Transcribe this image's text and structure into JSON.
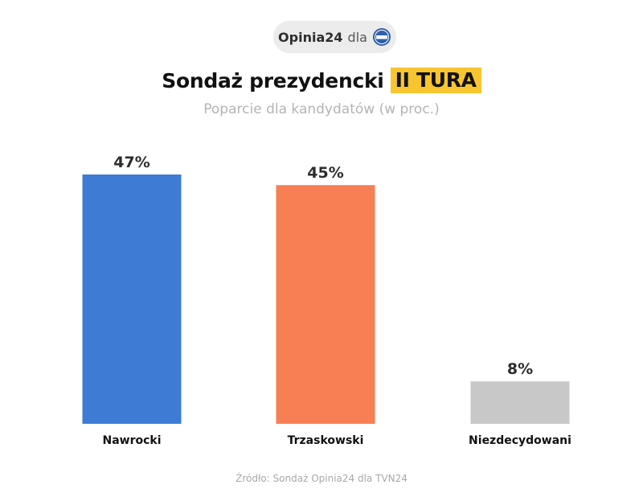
{
  "badge": {
    "brand": "Opinia24",
    "dla": "dla",
    "logo_icon": "tvn24-logo-icon"
  },
  "header": {
    "title": "Sondaż prezydencki",
    "title_highlight": "II TURA",
    "subtitle": "Poparcie dla kandydatów (w proc.)"
  },
  "chart_data": {
    "type": "bar",
    "title": "Sondaż prezydencki II TURA",
    "subtitle": "Poparcie dla kandydatów (w proc.)",
    "categories": [
      "Nawrocki",
      "Trzaskowski",
      "Niezdecydowani"
    ],
    "values": [
      47,
      45,
      8
    ],
    "labels": [
      "47%",
      "45%",
      "8%"
    ],
    "colors": [
      "#3d7bd4",
      "#f77f53",
      "#c8c8c8"
    ],
    "xlabel": "",
    "ylabel": "",
    "ylim": [
      0,
      47
    ],
    "grid": false,
    "legend": "none"
  },
  "footer": {
    "source": "Źródło: Sondaż Opinia24 dla TVN24"
  }
}
